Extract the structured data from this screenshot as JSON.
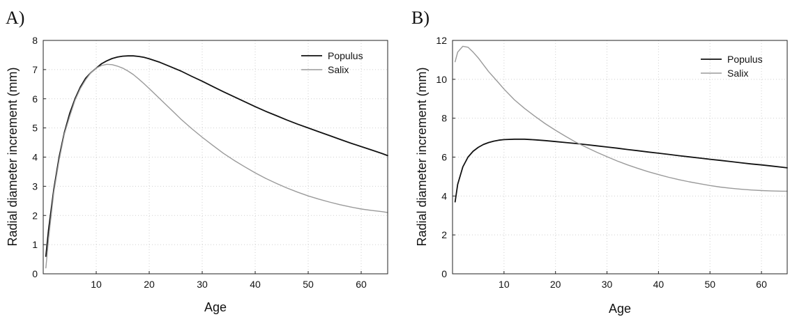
{
  "chart_data": [
    {
      "panel_label": "A)",
      "type": "line",
      "xlabel": "Age",
      "ylabel": "Radial diameter increment (mm)",
      "xlim": [
        0,
        65
      ],
      "ylim": [
        0,
        8
      ],
      "xticks": [
        10,
        20,
        30,
        40,
        50,
        60
      ],
      "yticks": [
        0,
        1,
        2,
        3,
        4,
        5,
        6,
        7,
        8
      ],
      "grid": true,
      "legend": "top-right",
      "series": [
        {
          "name": "Populus",
          "color": "#111111",
          "x": [
            0.5,
            1,
            2,
            3,
            4,
            5,
            6,
            7,
            8,
            9,
            10,
            11,
            12,
            13,
            14,
            15,
            16,
            17,
            18,
            19,
            20,
            22,
            24,
            26,
            28,
            30,
            32,
            34,
            36,
            38,
            40,
            42,
            44,
            46,
            48,
            50,
            52,
            54,
            56,
            58,
            60,
            62,
            64,
            65
          ],
          "y": [
            0.6,
            1.5,
            2.9,
            4.0,
            4.85,
            5.5,
            6.0,
            6.4,
            6.7,
            6.9,
            7.05,
            7.2,
            7.3,
            7.38,
            7.43,
            7.46,
            7.47,
            7.47,
            7.45,
            7.42,
            7.37,
            7.25,
            7.1,
            6.95,
            6.77,
            6.6,
            6.42,
            6.24,
            6.07,
            5.9,
            5.73,
            5.57,
            5.42,
            5.27,
            5.13,
            5.0,
            4.87,
            4.74,
            4.61,
            4.48,
            4.36,
            4.24,
            4.12,
            4.05
          ]
        },
        {
          "name": "Salix",
          "color": "#9a9a9a",
          "x": [
            0.5,
            1,
            2,
            3,
            4,
            5,
            6,
            7,
            8,
            9,
            10,
            11,
            12,
            13,
            14,
            15,
            16,
            17,
            18,
            19,
            20,
            22,
            24,
            26,
            28,
            30,
            32,
            34,
            36,
            38,
            40,
            42,
            44,
            46,
            48,
            50,
            52,
            54,
            56,
            58,
            60,
            62,
            64,
            65
          ],
          "y": [
            0.2,
            1.2,
            2.8,
            3.9,
            4.8,
            5.4,
            5.95,
            6.35,
            6.65,
            6.9,
            7.05,
            7.14,
            7.18,
            7.17,
            7.12,
            7.05,
            6.95,
            6.83,
            6.68,
            6.52,
            6.35,
            6.0,
            5.65,
            5.3,
            4.98,
            4.68,
            4.4,
            4.13,
            3.89,
            3.67,
            3.46,
            3.27,
            3.1,
            2.94,
            2.8,
            2.67,
            2.56,
            2.46,
            2.37,
            2.29,
            2.22,
            2.17,
            2.13,
            2.1
          ]
        }
      ]
    },
    {
      "panel_label": "B)",
      "type": "line",
      "xlabel": "Age",
      "ylabel": "Radial diameter increment (mm)",
      "xlim": [
        0,
        65
      ],
      "ylim": [
        0,
        12
      ],
      "xticks": [
        10,
        20,
        30,
        40,
        50,
        60
      ],
      "yticks": [
        0,
        2,
        4,
        6,
        8,
        10,
        12
      ],
      "grid": true,
      "legend": "top-right",
      "series": [
        {
          "name": "Populus",
          "color": "#111111",
          "x": [
            0.5,
            1,
            2,
            3,
            4,
            5,
            6,
            7,
            8,
            9,
            10,
            12,
            14,
            16,
            18,
            20,
            22,
            24,
            26,
            28,
            30,
            32,
            34,
            36,
            38,
            40,
            42,
            44,
            46,
            48,
            50,
            52,
            54,
            56,
            58,
            60,
            62,
            64,
            65
          ],
          "y": [
            3.7,
            4.6,
            5.5,
            6.0,
            6.3,
            6.5,
            6.65,
            6.75,
            6.82,
            6.87,
            6.9,
            6.92,
            6.92,
            6.89,
            6.85,
            6.8,
            6.75,
            6.7,
            6.64,
            6.58,
            6.52,
            6.46,
            6.39,
            6.33,
            6.26,
            6.2,
            6.14,
            6.07,
            6.01,
            5.95,
            5.89,
            5.83,
            5.77,
            5.71,
            5.65,
            5.6,
            5.54,
            5.48,
            5.45
          ]
        },
        {
          "name": "Salix",
          "color": "#9a9a9a",
          "x": [
            0.5,
            1,
            2,
            3,
            4,
            5,
            6,
            7,
            8,
            9,
            10,
            12,
            14,
            16,
            18,
            20,
            22,
            24,
            26,
            28,
            30,
            32,
            34,
            36,
            38,
            40,
            42,
            44,
            46,
            48,
            50,
            52,
            54,
            56,
            58,
            60,
            62,
            64,
            65
          ],
          "y": [
            10.9,
            11.4,
            11.7,
            11.65,
            11.4,
            11.1,
            10.75,
            10.4,
            10.1,
            9.8,
            9.5,
            8.95,
            8.5,
            8.1,
            7.72,
            7.38,
            7.06,
            6.76,
            6.5,
            6.25,
            6.02,
            5.8,
            5.6,
            5.42,
            5.25,
            5.1,
            4.96,
            4.84,
            4.73,
            4.63,
            4.54,
            4.46,
            4.4,
            4.35,
            4.31,
            4.28,
            4.26,
            4.25,
            4.25
          ]
        }
      ]
    }
  ]
}
